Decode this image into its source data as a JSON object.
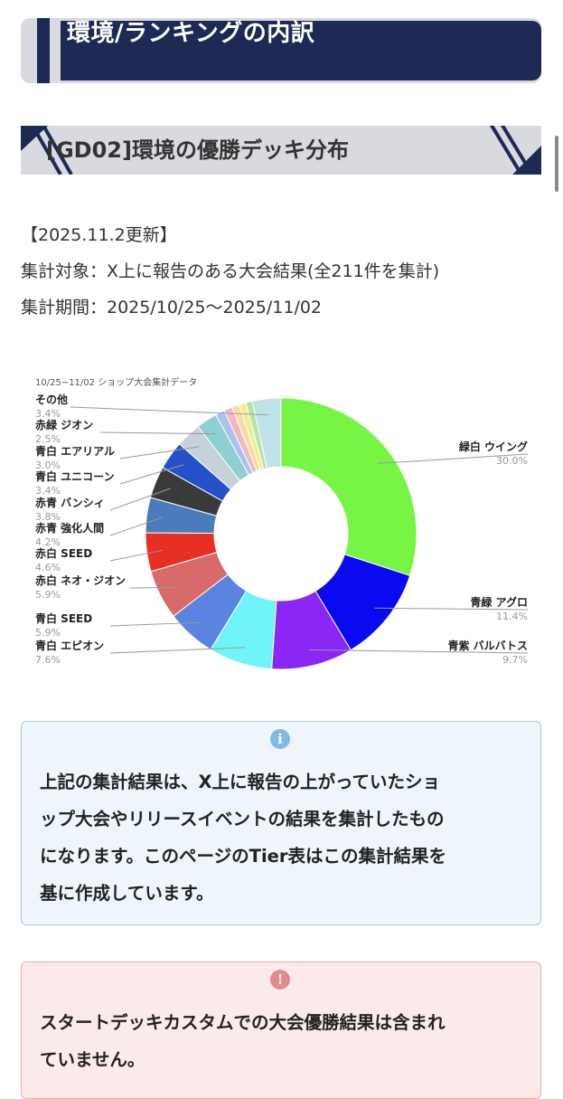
{
  "header": {
    "title": "環境/ランキングの内訳"
  },
  "section": {
    "title": "[GD02]環境の優勝デッキ分布"
  },
  "meta": {
    "updated": "【2025.11.2更新】",
    "target": "集計対象：X上に報告のある大会結果(全211件を集計)",
    "period": "集計期間：2025/10/25〜2025/11/02"
  },
  "chart_data": {
    "type": "pie",
    "title": "10/25~11/02 ショップ大会集計データ",
    "slices": [
      {
        "label": "緑白 ウイング",
        "pct": "30.0%",
        "value": 30.0,
        "color": "#76f542"
      },
      {
        "label": "青緑 アグロ",
        "pct": "11.4%",
        "value": 11.4,
        "color": "#0a0af0"
      },
      {
        "label": "青紫 バルバトス",
        "pct": "9.7%",
        "value": 9.7,
        "color": "#8a27f5"
      },
      {
        "label": "青白 エピオン",
        "pct": "7.6%",
        "value": 7.6,
        "color": "#6ff5f7"
      },
      {
        "label": "青白 SEED",
        "pct": "5.9%",
        "value": 5.9,
        "color": "#5a84e0"
      },
      {
        "label": "赤白 ネオ・ジオン",
        "pct": "5.9%",
        "value": 5.9,
        "color": "#d86a6a"
      },
      {
        "label": "赤白 SEED",
        "pct": "4.6%",
        "value": 4.6,
        "color": "#e82f24"
      },
      {
        "label": "赤青 強化人間",
        "pct": "4.2%",
        "value": 4.2,
        "color": "#4a7cbc"
      },
      {
        "label": "赤青 バンシィ",
        "pct": "3.8%",
        "value": 3.8,
        "color": "#3a3a3a"
      },
      {
        "label": "青白 ユニコーン",
        "pct": "3.4%",
        "value": 3.4,
        "color": "#2450c8"
      },
      {
        "label": "青白 エアリアル",
        "pct": "3.0%",
        "value": 3.0,
        "color": "#c6d2da"
      },
      {
        "label": "赤緑 ジオン",
        "pct": "2.5%",
        "value": 2.5,
        "color": "#8ecfd1"
      },
      {
        "label": "",
        "pct": "",
        "value": 1.1,
        "color": "#a9c3ee"
      },
      {
        "label": "",
        "pct": "",
        "value": 1.0,
        "color": "#f2b8c0"
      },
      {
        "label": "",
        "pct": "",
        "value": 0.9,
        "color": "#f7dca0"
      },
      {
        "label": "",
        "pct": "",
        "value": 0.8,
        "color": "#f1ec96"
      },
      {
        "label": "",
        "pct": "",
        "value": 0.8,
        "color": "#b4e4a6"
      },
      {
        "label": "その他",
        "pct": "3.4%",
        "value": 3.4,
        "color": "#bfe3e6"
      }
    ]
  },
  "info_box": {
    "icon": "info-icon",
    "lines": [
      "上記の集計結果は、X上に報告の上がっていたショ",
      "ップ大会やリリースイベントの結果を集計したもの",
      "になります。このページのTier表はこの集計結果を",
      "基に作成しています。"
    ]
  },
  "warn_box": {
    "icon": "exclamation-icon",
    "lines": [
      "スタートデッキカスタムでの大会優勝結果は含まれ",
      "ていません。"
    ]
  },
  "colors": {
    "navy": "#1e2a55",
    "header_gray": "#d8dae0",
    "info_border": "#a8cde6",
    "warn_border": "#e8b0b0"
  }
}
